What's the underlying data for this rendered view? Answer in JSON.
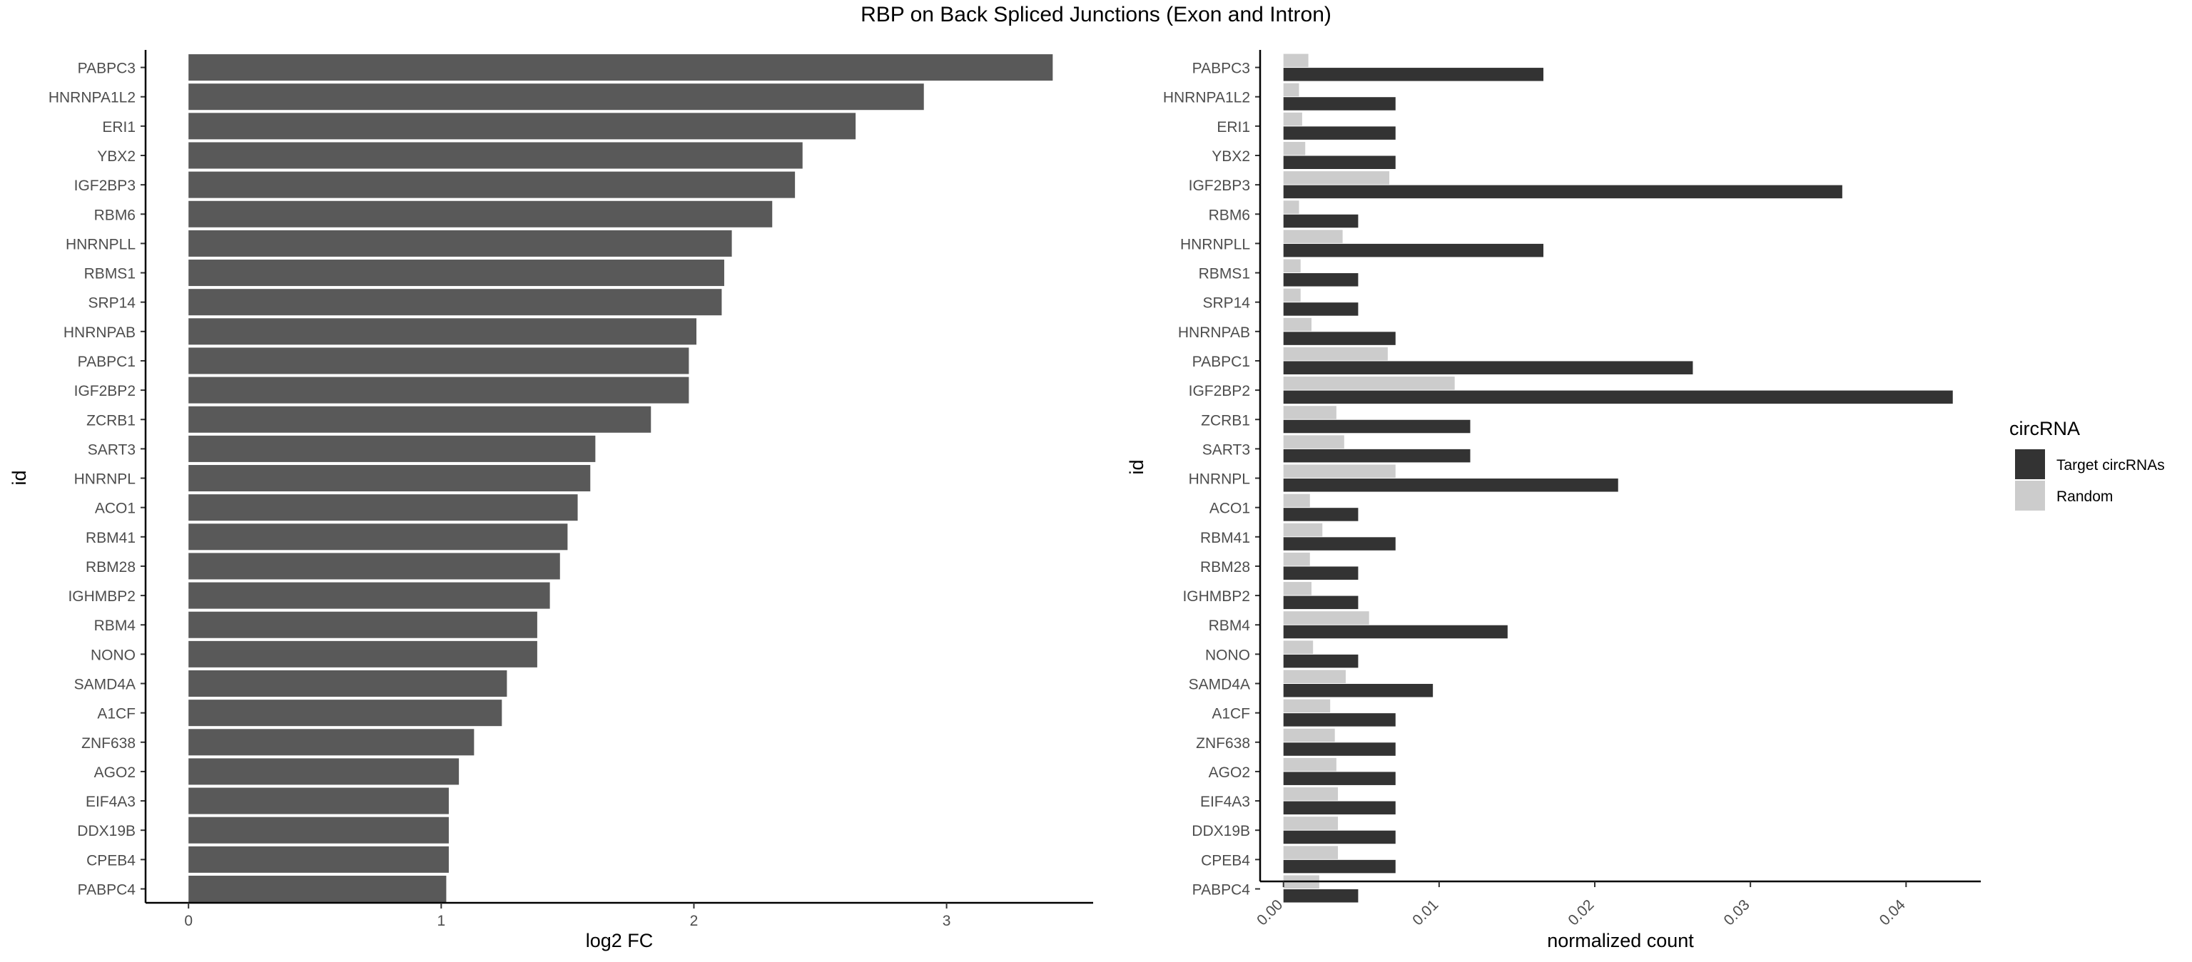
{
  "title": "RBP on Back Spliced Junctions (Exon and Intron)",
  "chart_data": [
    {
      "type": "bar",
      "orientation": "horizontal",
      "title": "",
      "xlabel": "log2 FC",
      "ylabel": "id",
      "xlim": [
        -0.17,
        3.58
      ],
      "xticks": [
        "0",
        "1",
        "2",
        "3"
      ],
      "grid": false,
      "bar_color": "#595959",
      "categories": [
        "PABPC3",
        "HNRNPA1L2",
        "ERI1",
        "YBX2",
        "IGF2BP3",
        "RBM6",
        "HNRNPLL",
        "RBMS1",
        "SRP14",
        "HNRNPAB",
        "PABPC1",
        "IGF2BP2",
        "ZCRB1",
        "SART3",
        "HNRNPL",
        "ACO1",
        "RBM41",
        "RBM28",
        "IGHMBP2",
        "RBM4",
        "NONO",
        "SAMD4A",
        "A1CF",
        "ZNF638",
        "AGO2",
        "EIF4A3",
        "DDX19B",
        "CPEB4",
        "PABPC4"
      ],
      "values": [
        3.42,
        2.91,
        2.64,
        2.43,
        2.4,
        2.31,
        2.15,
        2.12,
        2.11,
        2.01,
        1.98,
        1.98,
        1.83,
        1.61,
        1.59,
        1.54,
        1.5,
        1.47,
        1.43,
        1.38,
        1.38,
        1.26,
        1.24,
        1.13,
        1.07,
        1.03,
        1.03,
        1.03,
        1.02
      ]
    },
    {
      "type": "bar",
      "orientation": "horizontal",
      "title": "",
      "xlabel": "normalized count",
      "ylabel": "id",
      "xlim": [
        -0.0015,
        0.0448
      ],
      "xticks": [
        "0.00",
        "0.01",
        "0.02",
        "0.03",
        "0.04"
      ],
      "grid": false,
      "legend": {
        "title": "circRNA",
        "position": "right"
      },
      "categories": [
        "PABPC3",
        "HNRNPA1L2",
        "ERI1",
        "YBX2",
        "IGF2BP3",
        "RBM6",
        "HNRNPLL",
        "RBMS1",
        "SRP14",
        "HNRNPAB",
        "PABPC1",
        "IGF2BP2",
        "ZCRB1",
        "SART3",
        "HNRNPL",
        "ACO1",
        "RBM41",
        "RBM28",
        "IGHMBP2",
        "RBM4",
        "NONO",
        "SAMD4A",
        "A1CF",
        "ZNF638",
        "AGO2",
        "EIF4A3",
        "DDX19B",
        "CPEB4",
        "PABPC4"
      ],
      "series": [
        {
          "name": "Target circRNAs",
          "color": "#333333",
          "values": [
            0.0167,
            0.0072,
            0.0072,
            0.0072,
            0.0359,
            0.0048,
            0.0167,
            0.0048,
            0.0048,
            0.0072,
            0.0263,
            0.043,
            0.012,
            0.012,
            0.0215,
            0.0048,
            0.0072,
            0.0048,
            0.0048,
            0.0144,
            0.0048,
            0.0096,
            0.0072,
            0.0072,
            0.0072,
            0.0072,
            0.0072,
            0.0072,
            0.0048
          ]
        },
        {
          "name": "Random",
          "color": "#cccccc",
          "values": [
            0.0016,
            0.001,
            0.0012,
            0.0014,
            0.0068,
            0.001,
            0.0038,
            0.0011,
            0.0011,
            0.0018,
            0.0067,
            0.011,
            0.0034,
            0.0039,
            0.0072,
            0.0017,
            0.0025,
            0.0017,
            0.0018,
            0.0055,
            0.0019,
            0.004,
            0.003,
            0.0033,
            0.0034,
            0.0035,
            0.0035,
            0.0035,
            0.0023
          ]
        }
      ]
    }
  ]
}
